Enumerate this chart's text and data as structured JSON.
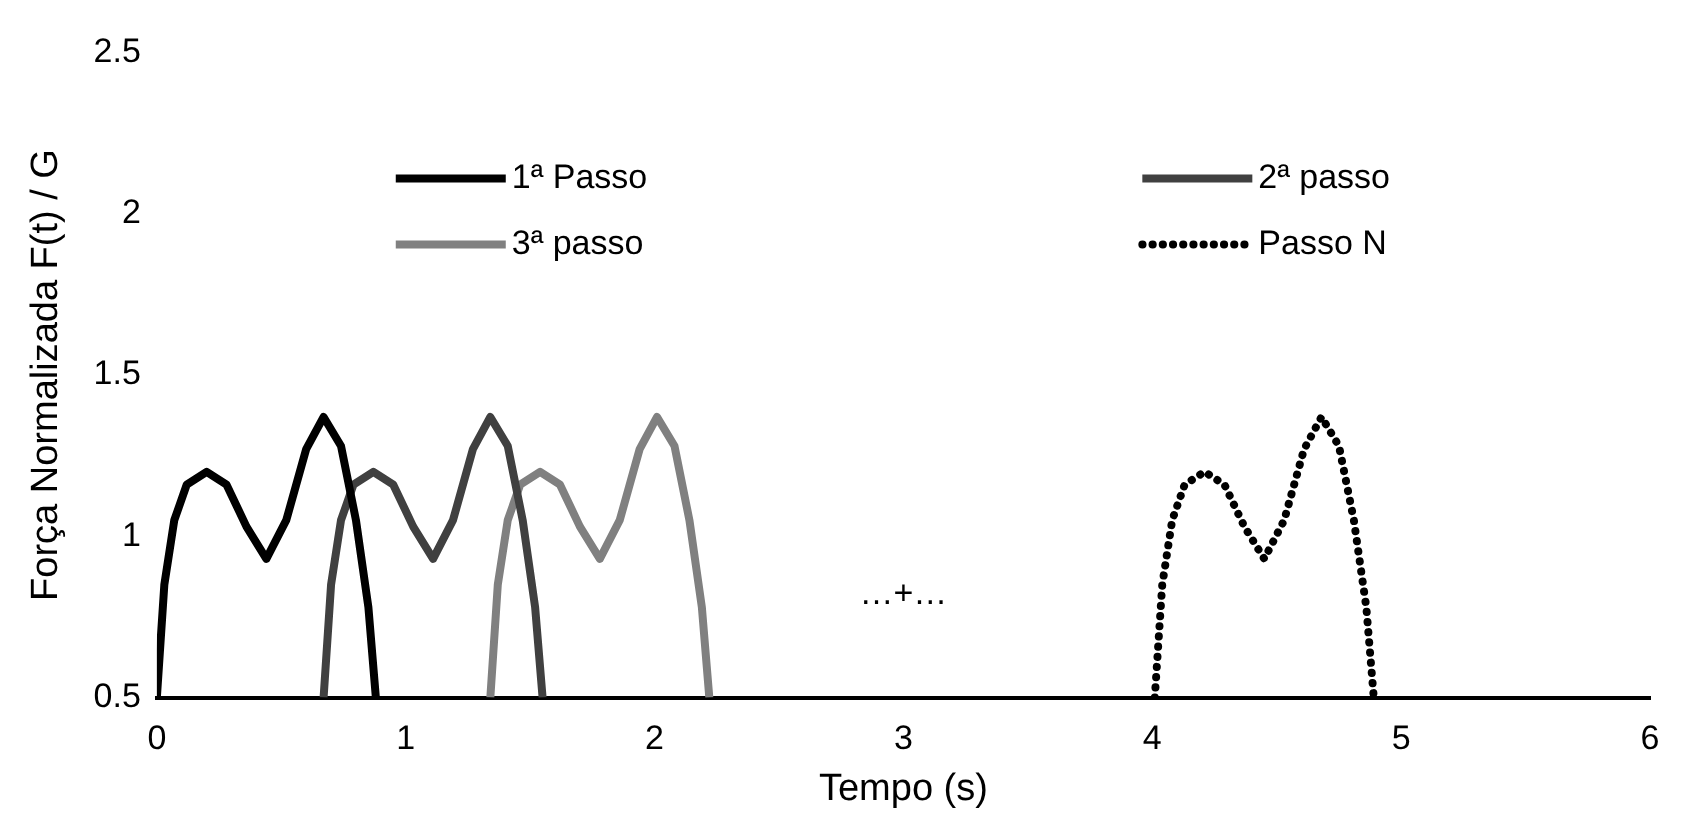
{
  "chart_data": {
    "type": "line",
    "xlabel": "Tempo (s)",
    "ylabel": "Força Normalizada F(t) / G",
    "xlim": [
      0,
      6
    ],
    "xticks": [
      0,
      1,
      2,
      3,
      4,
      5,
      6
    ],
    "ylim": [
      0.5,
      2.5
    ],
    "yticks": [
      0.5,
      1,
      1.5,
      2,
      2.5
    ],
    "grid": false,
    "legend": "top",
    "marker": "none",
    "series": [
      {
        "name": "1ª Passo",
        "color": "#000000",
        "line_style": "solid",
        "x": [
          0,
          0.03,
          0.07,
          0.12,
          0.2,
          0.28,
          0.36,
          0.44,
          0.52,
          0.6,
          0.67,
          0.74,
          0.8,
          0.85,
          0.88
        ],
        "values": [
          0.5,
          0.85,
          1.05,
          1.16,
          1.2,
          1.16,
          1.03,
          0.93,
          1.05,
          1.27,
          1.37,
          1.28,
          1.05,
          0.78,
          0.5
        ]
      },
      {
        "name": "2ª passo",
        "color": "#404040",
        "line_style": "solid",
        "x": [
          0.67,
          0.7,
          0.74,
          0.79,
          0.87,
          0.95,
          1.03,
          1.11,
          1.19,
          1.27,
          1.34,
          1.41,
          1.47,
          1.52,
          1.55
        ],
        "values": [
          0.5,
          0.85,
          1.05,
          1.16,
          1.2,
          1.16,
          1.03,
          0.93,
          1.05,
          1.27,
          1.37,
          1.28,
          1.05,
          0.78,
          0.5
        ]
      },
      {
        "name": "3ª passo",
        "color": "#808080",
        "line_style": "solid",
        "x": [
          1.34,
          1.37,
          1.41,
          1.46,
          1.54,
          1.62,
          1.7,
          1.78,
          1.86,
          1.94,
          2.01,
          2.08,
          2.14,
          2.19,
          2.22
        ],
        "values": [
          0.5,
          0.85,
          1.05,
          1.16,
          1.2,
          1.16,
          1.03,
          0.93,
          1.05,
          1.27,
          1.37,
          1.28,
          1.05,
          0.78,
          0.5
        ]
      },
      {
        "name": "Passo N",
        "color": "#000000",
        "line_style": "dotted",
        "x": [
          4.01,
          4.04,
          4.08,
          4.13,
          4.21,
          4.29,
          4.37,
          4.45,
          4.53,
          4.61,
          4.68,
          4.75,
          4.81,
          4.86,
          4.89
        ],
        "values": [
          0.5,
          0.85,
          1.05,
          1.16,
          1.2,
          1.16,
          1.03,
          0.93,
          1.05,
          1.27,
          1.37,
          1.28,
          1.05,
          0.78,
          0.5
        ]
      }
    ],
    "annotations": [
      "…+…"
    ]
  }
}
